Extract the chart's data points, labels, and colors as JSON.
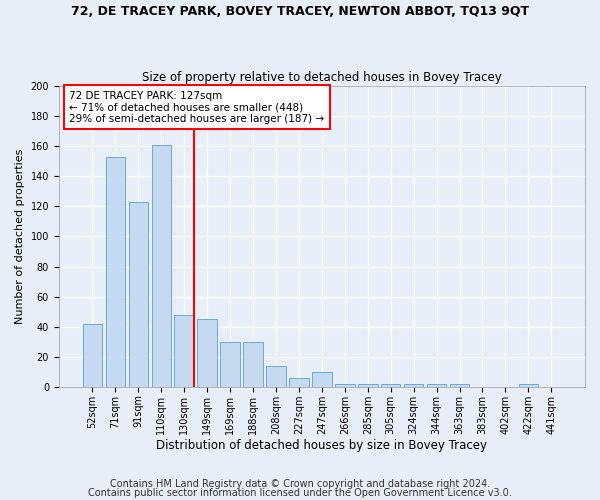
{
  "title": "72, DE TRACEY PARK, BOVEY TRACEY, NEWTON ABBOT, TQ13 9QT",
  "subtitle": "Size of property relative to detached houses in Bovey Tracey",
  "xlabel": "Distribution of detached houses by size in Bovey Tracey",
  "ylabel": "Number of detached properties",
  "categories": [
    "52sqm",
    "71sqm",
    "91sqm",
    "110sqm",
    "130sqm",
    "149sqm",
    "169sqm",
    "188sqm",
    "208sqm",
    "227sqm",
    "247sqm",
    "266sqm",
    "285sqm",
    "305sqm",
    "324sqm",
    "344sqm",
    "363sqm",
    "383sqm",
    "402sqm",
    "422sqm",
    "441sqm"
  ],
  "values": [
    42,
    153,
    123,
    161,
    48,
    45,
    30,
    30,
    14,
    6,
    10,
    2,
    2,
    2,
    2,
    2,
    2,
    0,
    0,
    2,
    0
  ],
  "bar_color": "#c5d9f0",
  "bar_edge_color": "#6aaad4",
  "vline_x_index": 4,
  "vline_color": "red",
  "annotation_line1": "72 DE TRACEY PARK: 127sqm",
  "annotation_line2": "← 71% of detached houses are smaller (448)",
  "annotation_line3": "29% of semi-detached houses are larger (187) →",
  "annotation_box_color": "white",
  "annotation_box_edge_color": "red",
  "ylim": [
    0,
    200
  ],
  "yticks": [
    0,
    20,
    40,
    60,
    80,
    100,
    120,
    140,
    160,
    180,
    200
  ],
  "footer1": "Contains HM Land Registry data © Crown copyright and database right 2024.",
  "footer2": "Contains public sector information licensed under the Open Government Licence v3.0.",
  "background_color": "#e8eef8",
  "grid_color": "white",
  "title_fontsize": 9,
  "subtitle_fontsize": 8.5,
  "ylabel_fontsize": 8,
  "xlabel_fontsize": 8.5,
  "tick_fontsize": 7,
  "annotation_fontsize": 7.5,
  "footer_fontsize": 7
}
